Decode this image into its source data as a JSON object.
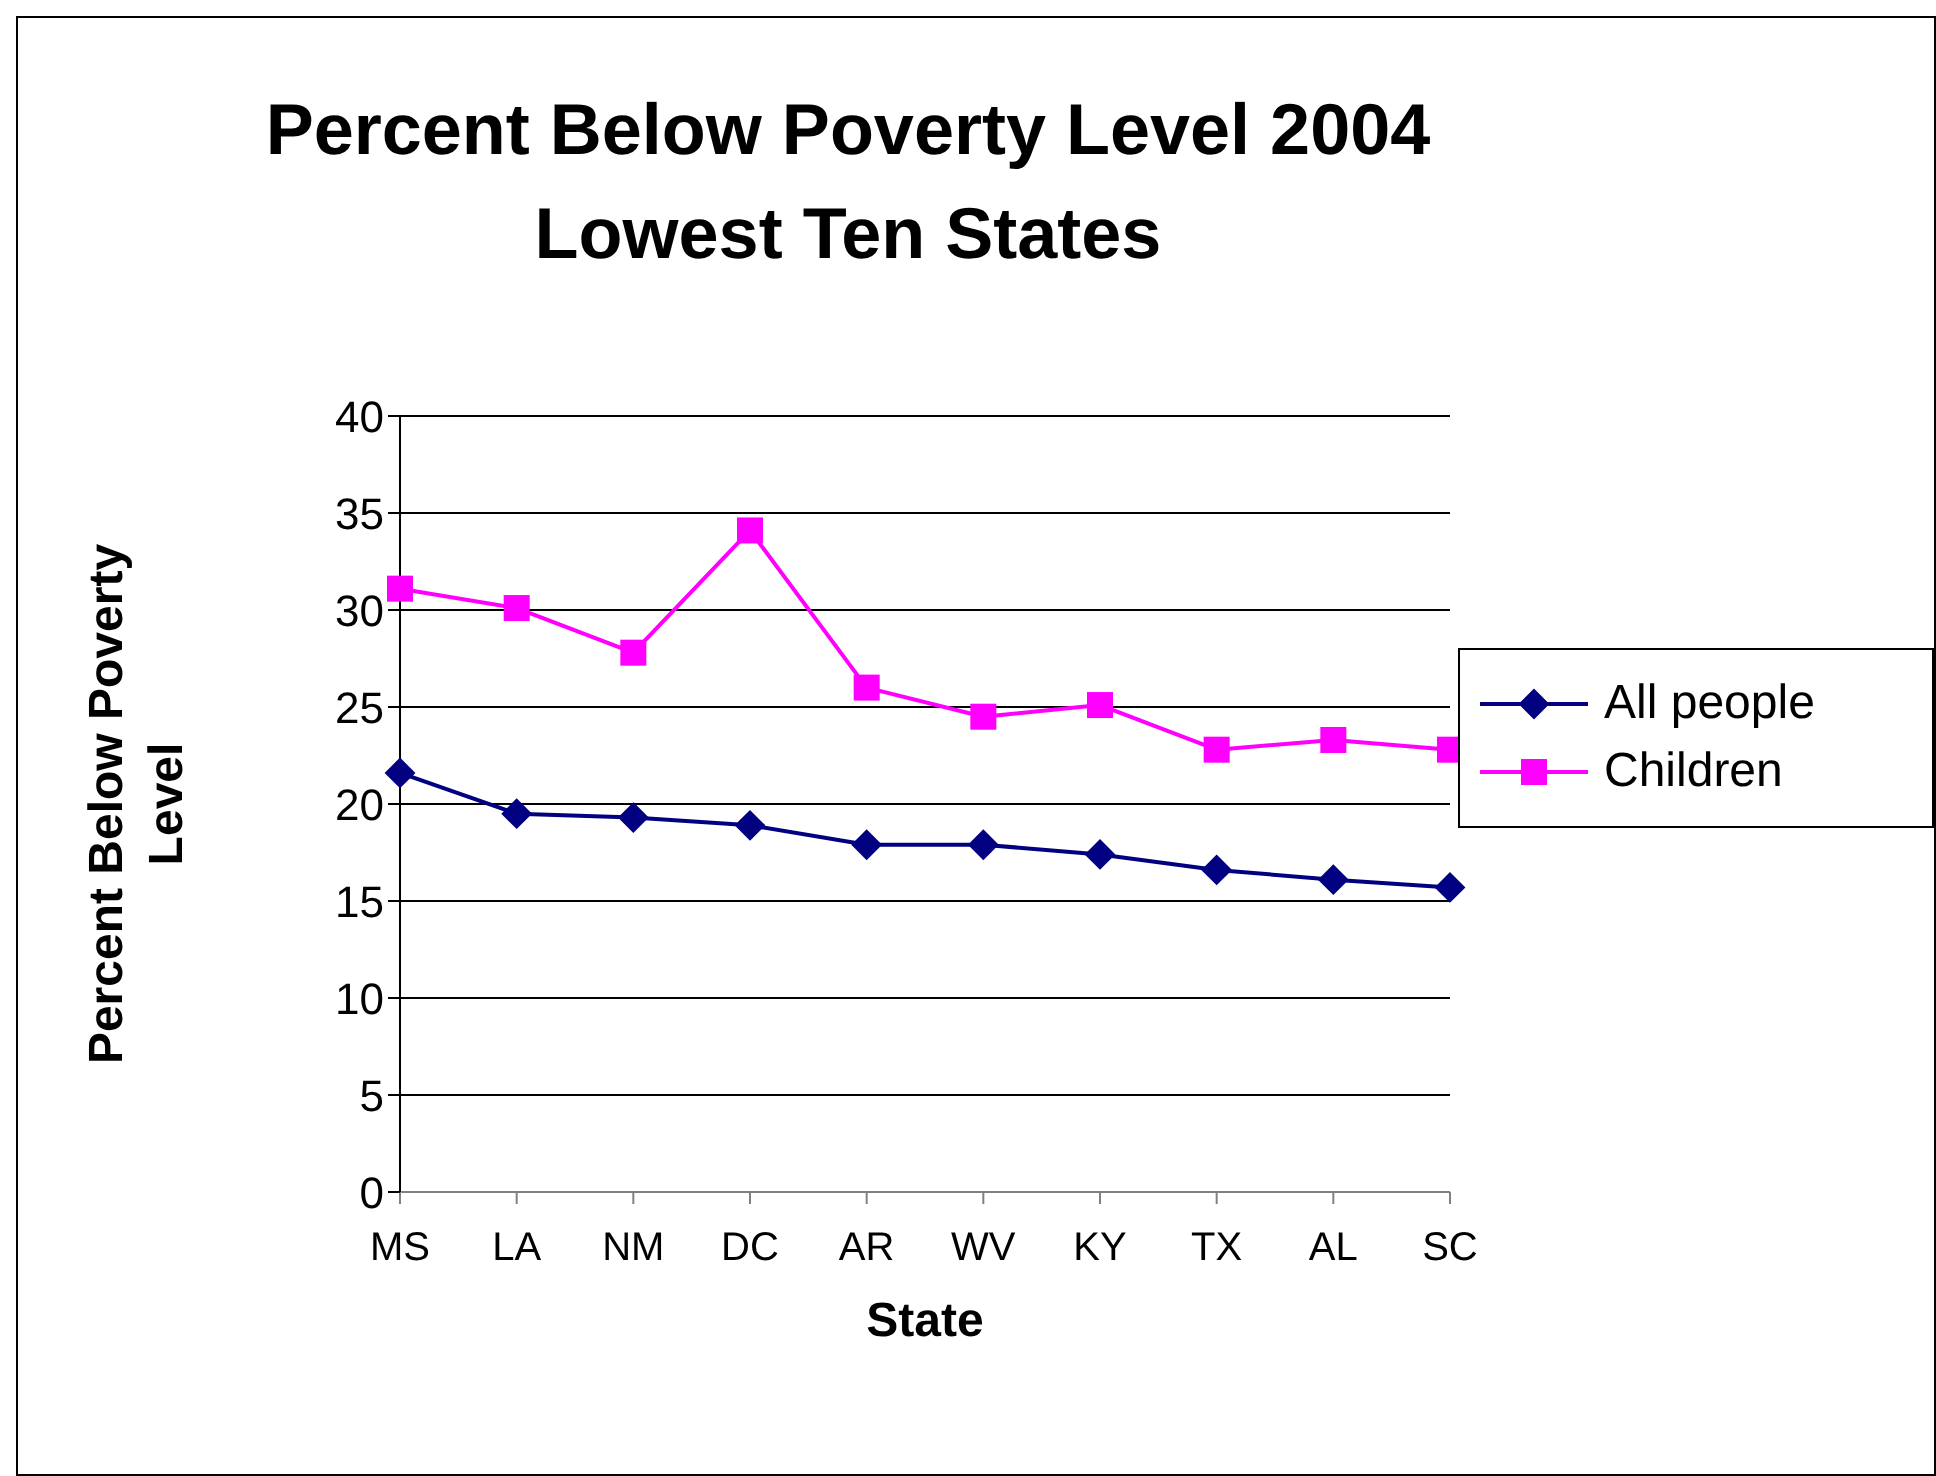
{
  "chart_data": {
    "type": "line",
    "title": "Percent Below Poverty Level 2004\nLowest Ten States",
    "xlabel": "State",
    "ylabel": "Percent Below Poverty Level",
    "categories": [
      "MS",
      "LA",
      "NM",
      "DC",
      "AR",
      "WV",
      "KY",
      "TX",
      "AL",
      "SC"
    ],
    "series": [
      {
        "name": "All people",
        "color": "#000080",
        "marker": "diamond",
        "values": [
          21.6,
          19.5,
          19.3,
          18.9,
          17.9,
          17.9,
          17.4,
          16.6,
          16.1,
          15.7
        ]
      },
      {
        "name": "Children",
        "color": "#ff00ff",
        "marker": "square",
        "values": [
          31.1,
          30.1,
          27.8,
          34.1,
          26.0,
          24.5,
          25.1,
          22.8,
          23.3,
          22.8
        ]
      }
    ],
    "ylim": [
      0,
      40
    ],
    "yticks": [
      0,
      5,
      10,
      15,
      20,
      25,
      30,
      35,
      40
    ],
    "grid": "y",
    "legend": "right"
  }
}
